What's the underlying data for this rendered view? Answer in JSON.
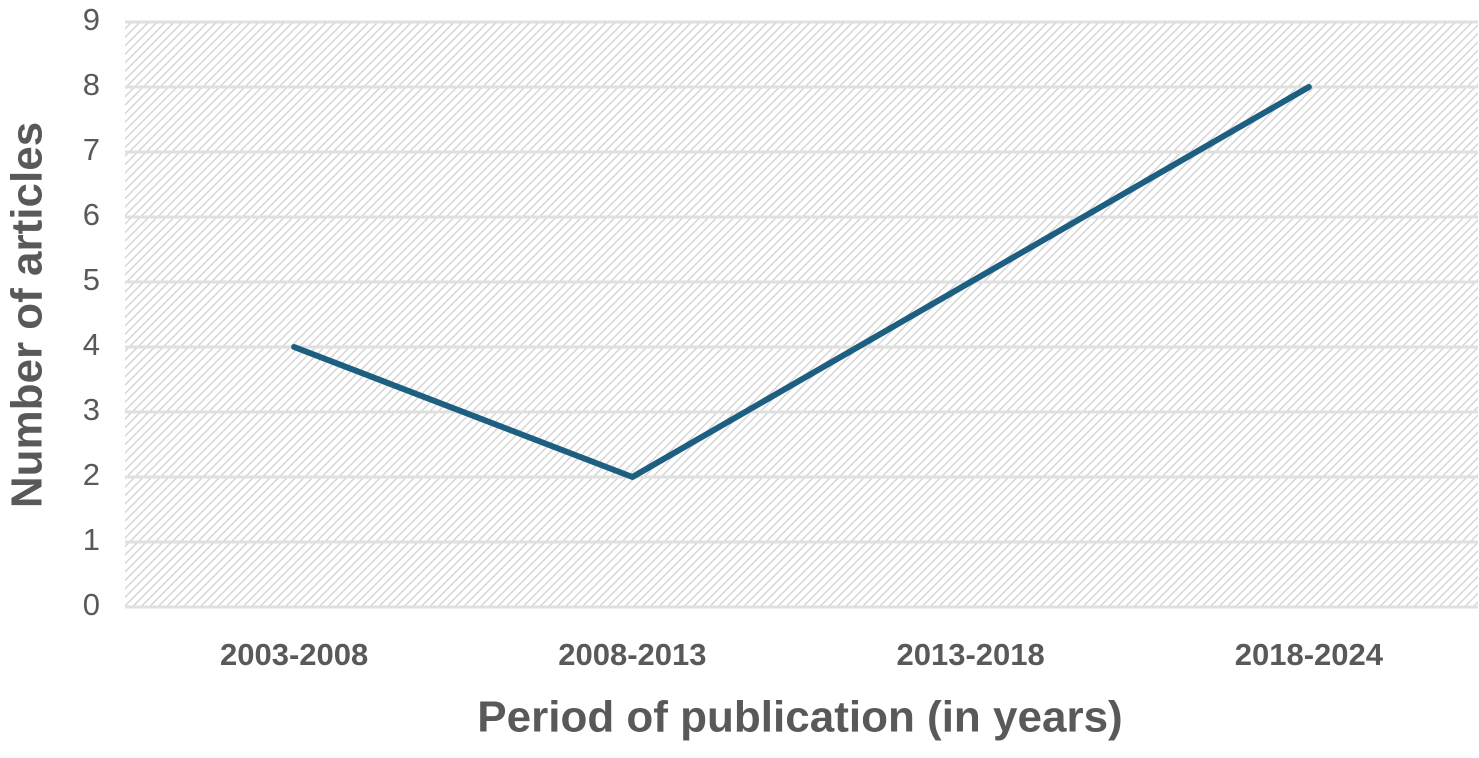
{
  "chart_data": {
    "type": "line",
    "x_label": "Period of publication (in years)",
    "y_label": "Number of articles",
    "categories": [
      "2003-2008",
      "2008-2013",
      "2013-2018",
      "2018-2024"
    ],
    "series": [
      {
        "name": "Number of articles",
        "color": "#1d5f80",
        "values": [
          4,
          2,
          5,
          8
        ]
      }
    ],
    "ylim": [
      0,
      9
    ],
    "yticks": [
      0,
      1,
      2,
      3,
      4,
      5,
      6,
      7,
      8,
      9
    ],
    "grid": true
  }
}
